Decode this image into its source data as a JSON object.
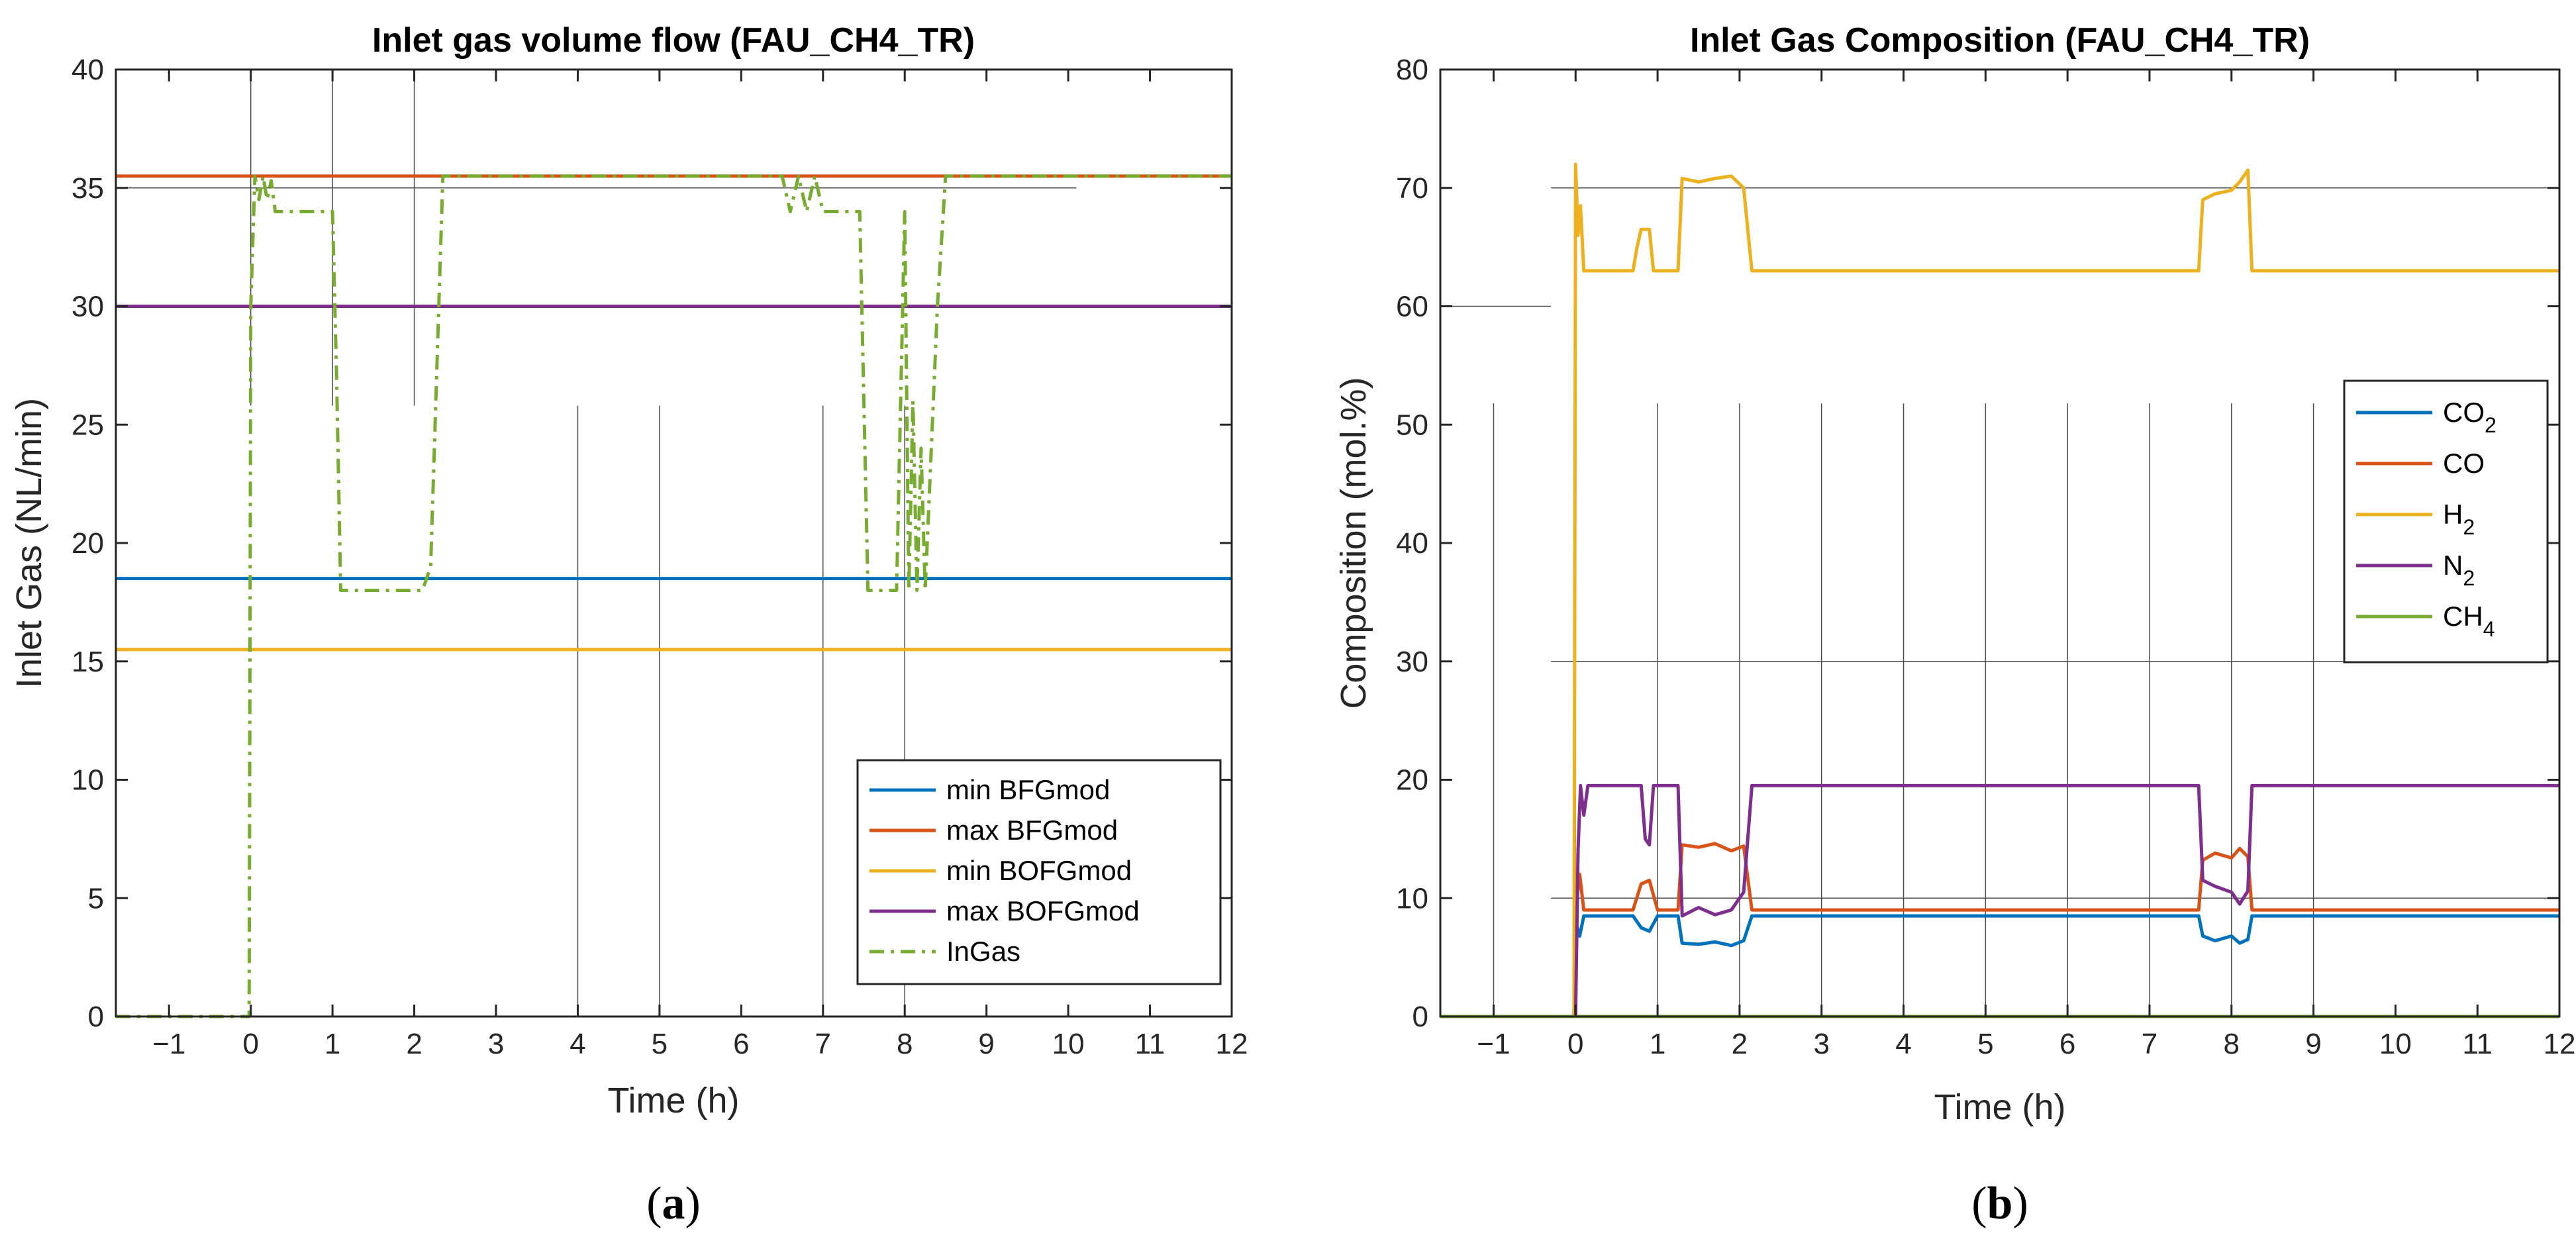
{
  "chart_data": [
    {
      "type": "line",
      "panel_label": "a",
      "title": "Inlet gas volume flow (FAU_CH4_TR)",
      "xlabel": "Time (h)",
      "ylabel": "Inlet Gas (NL/min)",
      "xlim": [
        -1.65,
        12
      ],
      "ylim": [
        0,
        40
      ],
      "xticks": [
        -1,
        0,
        1,
        2,
        3,
        4,
        5,
        6,
        7,
        8,
        9,
        10,
        11,
        12
      ],
      "xtick_labels": [
        "−1",
        "0",
        "1",
        "2",
        "3",
        "4",
        "5",
        "6",
        "7",
        "8",
        "9",
        "10",
        "11",
        "12"
      ],
      "yticks": [
        0,
        5,
        10,
        15,
        20,
        25,
        30,
        35,
        40
      ],
      "ytick_labels": [
        "0",
        "5",
        "10",
        "15",
        "20",
        "25",
        "30",
        "35",
        "40"
      ],
      "legend_position": "bottom-right",
      "series": [
        {
          "name": "min BFGmod",
          "color": "#0072BD",
          "style": "solid",
          "x": [
            -1.65,
            12
          ],
          "y": [
            18.5,
            18.5
          ]
        },
        {
          "name": "max BFGmod",
          "color": "#D95319",
          "style": "solid",
          "x": [
            -1.65,
            12
          ],
          "y": [
            35.5,
            35.5
          ]
        },
        {
          "name": "min BOFGmod",
          "color": "#EDB120",
          "style": "solid",
          "x": [
            -1.65,
            12
          ],
          "y": [
            15.5,
            15.5
          ]
        },
        {
          "name": "max BOFGmod",
          "color": "#7E2F8E",
          "style": "solid",
          "x": [
            -1.65,
            12
          ],
          "y": [
            30,
            30
          ]
        },
        {
          "name": "InGas",
          "color": "#77AC30",
          "style": "dashdot",
          "x": [
            -1.65,
            -0.02,
            0.0,
            0.05,
            0.1,
            0.15,
            0.2,
            0.25,
            0.3,
            0.4,
            0.5,
            0.9,
            1.0,
            1.05,
            1.1,
            1.5,
            2.0,
            2.1,
            2.2,
            2.35,
            3.0,
            6.5,
            6.6,
            6.7,
            6.8,
            6.9,
            7.0,
            7.1,
            7.3,
            7.45,
            7.55,
            7.7,
            7.9,
            8.0,
            8.05,
            8.1,
            8.15,
            8.2,
            8.25,
            8.3,
            8.4,
            8.5,
            9.0,
            12
          ],
          "y": [
            0,
            0,
            30,
            35.5,
            34.5,
            35.5,
            34.5,
            35.3,
            34,
            34,
            34,
            34,
            34,
            27,
            18,
            18,
            18,
            18,
            19,
            35.5,
            35.5,
            35.5,
            34,
            35.5,
            34,
            35.5,
            34,
            34,
            34,
            34,
            18,
            18,
            18,
            34,
            18,
            26,
            18,
            24,
            18,
            22,
            30,
            35.5,
            35.5,
            35.5
          ]
        }
      ],
      "legend": [
        "min BFGmod",
        "max BFGmod",
        "min BOFGmod",
        "max BOFGmod",
        "InGas"
      ]
    },
    {
      "type": "line",
      "panel_label": "b",
      "title": "Inlet Gas Composition (FAU_CH4_TR)",
      "xlabel": "Time (h)",
      "ylabel": "Composition (mol.%)",
      "xlim": [
        -1.65,
        12
      ],
      "ylim": [
        0,
        80
      ],
      "xticks": [
        -1,
        0,
        1,
        2,
        3,
        4,
        5,
        6,
        7,
        8,
        9,
        10,
        11,
        12
      ],
      "xtick_labels": [
        "−1",
        "0",
        "1",
        "2",
        "3",
        "4",
        "5",
        "6",
        "7",
        "8",
        "9",
        "10",
        "11",
        "12"
      ],
      "yticks": [
        0,
        10,
        20,
        30,
        40,
        50,
        60,
        70,
        80
      ],
      "ytick_labels": [
        "0",
        "10",
        "20",
        "30",
        "40",
        "50",
        "60",
        "70",
        "80"
      ],
      "legend_position": "top-right",
      "series": [
        {
          "name": "CO2",
          "sub": "2",
          "base": "CO",
          "color": "#0072BD",
          "x": [
            -1.65,
            -0.02,
            0.0,
            0.05,
            0.1,
            0.15,
            0.7,
            0.8,
            0.9,
            1.0,
            1.25,
            1.3,
            1.5,
            1.7,
            1.9,
            2.05,
            2.15,
            7.6,
            7.65,
            7.8,
            8.0,
            8.1,
            8.2,
            8.25,
            12
          ],
          "y": [
            0,
            0,
            8,
            6.8,
            8.5,
            8.5,
            8.5,
            7.5,
            7.2,
            8.5,
            8.5,
            6.2,
            6.1,
            6.3,
            6.0,
            6.4,
            8.5,
            8.5,
            6.8,
            6.4,
            6.8,
            6.2,
            6.5,
            8.5,
            8.5
          ]
        },
        {
          "name": "CO",
          "sub": "",
          "base": "CO",
          "color": "#D95319",
          "x": [
            -1.65,
            -0.02,
            0.0,
            0.05,
            0.1,
            0.15,
            0.7,
            0.8,
            0.9,
            1.0,
            1.25,
            1.3,
            1.5,
            1.7,
            1.9,
            2.05,
            2.15,
            7.6,
            7.65,
            7.8,
            8.0,
            8.1,
            8.2,
            8.25,
            12
          ],
          "y": [
            0,
            0,
            9,
            12,
            9,
            9,
            9,
            11.2,
            11.5,
            9,
            9,
            14.5,
            14.3,
            14.6,
            14.0,
            14.4,
            9,
            9,
            13.2,
            13.8,
            13.4,
            14.2,
            13.5,
            9,
            9
          ]
        },
        {
          "name": "H2",
          "sub": "2",
          "base": "H",
          "color": "#EDB120",
          "x": [
            -1.65,
            -0.02,
            0.0,
            0.03,
            0.06,
            0.1,
            0.15,
            0.7,
            0.75,
            0.8,
            0.9,
            0.95,
            1.0,
            1.25,
            1.3,
            1.5,
            1.7,
            1.9,
            2.05,
            2.15,
            7.6,
            7.65,
            7.8,
            8.0,
            8.1,
            8.2,
            8.25,
            12
          ],
          "y": [
            0,
            0,
            72,
            66,
            68.5,
            63,
            63,
            63,
            65,
            66.5,
            66.5,
            63,
            63,
            63,
            70.8,
            70.5,
            70.8,
            71,
            70,
            63,
            63,
            69,
            69.5,
            69.8,
            70.5,
            71.5,
            63,
            63
          ]
        },
        {
          "name": "N2",
          "sub": "2",
          "base": "N",
          "color": "#7E2F8E",
          "x": [
            -1.65,
            -0.02,
            0.0,
            0.03,
            0.06,
            0.1,
            0.15,
            0.8,
            0.85,
            0.9,
            0.95,
            1.0,
            1.25,
            1.3,
            1.5,
            1.7,
            1.9,
            2.05,
            2.15,
            7.6,
            7.65,
            7.8,
            8.0,
            8.1,
            8.2,
            8.25,
            12
          ],
          "y": [
            0,
            0,
            0,
            14,
            19.5,
            17,
            19.5,
            19.5,
            15,
            14.5,
            19.5,
            19.5,
            19.5,
            8.5,
            9.2,
            8.6,
            9.0,
            10.5,
            19.5,
            19.5,
            11.5,
            11,
            10.5,
            9.5,
            10.6,
            19.5,
            19.5
          ]
        },
        {
          "name": "CH4",
          "sub": "4",
          "base": "CH",
          "color": "#77AC30",
          "x": [
            -1.65,
            12
          ],
          "y": [
            0,
            0
          ]
        }
      ],
      "legend": [
        "CO2",
        "CO",
        "H2",
        "N2",
        "CH4"
      ]
    }
  ]
}
